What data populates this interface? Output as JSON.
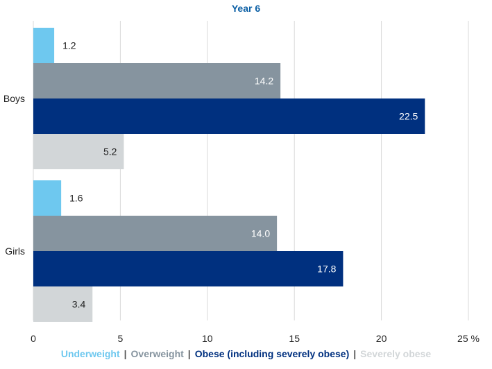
{
  "chart_data": {
    "type": "bar",
    "orientation": "horizontal",
    "title": "Year 6",
    "categories": [
      "Boys",
      "Girls"
    ],
    "series": [
      {
        "name": "Underweight",
        "color": "#6ec8ef",
        "values": [
          1.2,
          1.6
        ],
        "labels": [
          "1.2",
          "1.6"
        ]
      },
      {
        "name": "Overweight",
        "color": "#86949f",
        "values": [
          14.2,
          14.0
        ],
        "labels": [
          "14.2",
          "14.0"
        ]
      },
      {
        "name": "Obese (including severely obese)",
        "color": "#00307f",
        "values": [
          22.5,
          17.8
        ],
        "labels": [
          "22.5",
          "17.8"
        ]
      },
      {
        "name": "Severely obese",
        "color": "#d2d6d8",
        "values": [
          5.2,
          3.4
        ],
        "labels": [
          "5.2",
          "3.4"
        ]
      }
    ],
    "xlim": [
      0,
      25
    ],
    "xticks": [
      "0",
      "5",
      "10",
      "15",
      "20",
      "25"
    ],
    "xunit": "%",
    "grid": "vertical",
    "legend_position": "bottom",
    "legend_separator": "|"
  }
}
